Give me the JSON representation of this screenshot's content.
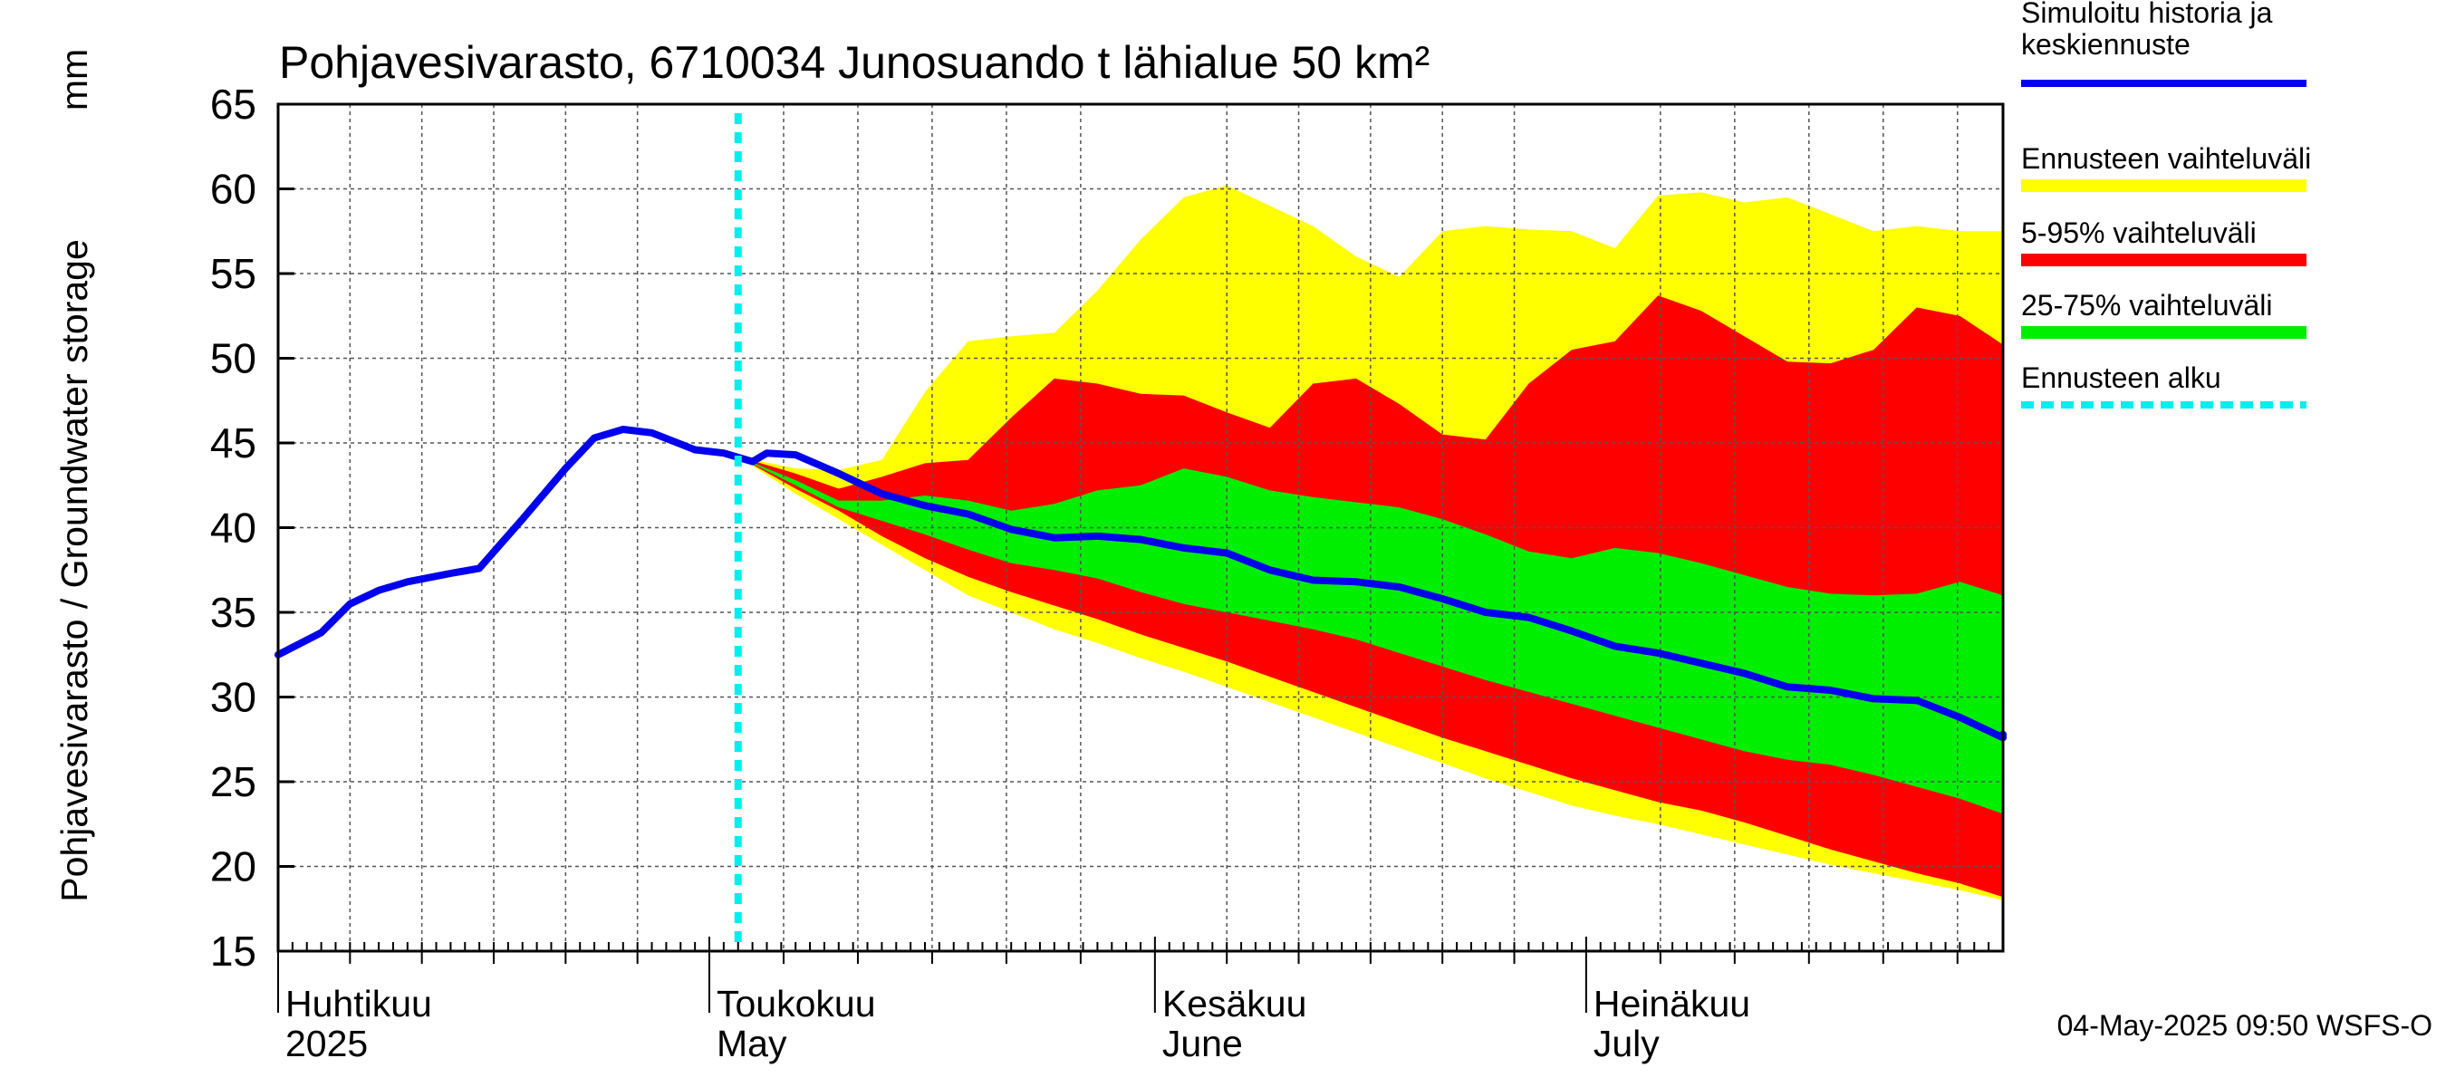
{
  "chart_data": {
    "type": "area",
    "title": "Pohjavesivarasto, 6710034 Junosuando t lähialue 50 km²",
    "ylabel": "Pohjavesivarasto / Groundwater storage",
    "yunit": "mm",
    "ylim": [
      15,
      65
    ],
    "yticks": [
      15,
      20,
      25,
      30,
      35,
      40,
      45,
      50,
      55,
      60,
      65
    ],
    "xlim": [
      "2025-04-01",
      "2025-07-30"
    ],
    "grid": true,
    "legend_position": "right",
    "month_labels": [
      {
        "fi": "Huhtikuu",
        "en": "2025",
        "date": "2025-04-01"
      },
      {
        "fi": "Toukokuu",
        "en": "May",
        "date": "2025-05-01"
      },
      {
        "fi": "Kesäkuu",
        "en": "June",
        "date": "2025-06-01"
      },
      {
        "fi": "Heinäkuu",
        "en": "July",
        "date": "2025-07-01"
      }
    ],
    "forecast_start": "2025-05-03",
    "footer": "04-May-2025 09:50 WSFS-O",
    "series": [
      {
        "name": "Simuloitu historia ja keskiennuste",
        "color": "#0000ee",
        "points": [
          [
            "2025-04-01",
            32.5
          ],
          [
            "2025-04-04",
            33.8
          ],
          [
            "2025-04-06",
            35.5
          ],
          [
            "2025-04-08",
            36.3
          ],
          [
            "2025-04-10",
            36.8
          ],
          [
            "2025-04-13",
            37.3
          ],
          [
            "2025-04-15",
            37.6
          ],
          [
            "2025-04-18",
            40.5
          ],
          [
            "2025-04-21",
            43.5
          ],
          [
            "2025-04-23",
            45.3
          ],
          [
            "2025-04-25",
            45.8
          ],
          [
            "2025-04-27",
            45.6
          ],
          [
            "2025-04-30",
            44.6
          ],
          [
            "2025-05-02",
            44.4
          ],
          [
            "2025-05-04",
            43.9
          ],
          [
            "2025-05-05",
            44.4
          ],
          [
            "2025-05-07",
            44.3
          ],
          [
            "2025-05-10",
            43.2
          ],
          [
            "2025-05-13",
            42.0
          ],
          [
            "2025-05-16",
            41.3
          ],
          [
            "2025-05-19",
            40.8
          ],
          [
            "2025-05-22",
            39.9
          ],
          [
            "2025-05-25",
            39.4
          ],
          [
            "2025-05-28",
            39.5
          ],
          [
            "2025-05-31",
            39.3
          ],
          [
            "2025-06-03",
            38.8
          ],
          [
            "2025-06-06",
            38.5
          ],
          [
            "2025-06-09",
            37.5
          ],
          [
            "2025-06-12",
            36.9
          ],
          [
            "2025-06-15",
            36.8
          ],
          [
            "2025-06-18",
            36.5
          ],
          [
            "2025-06-21",
            35.8
          ],
          [
            "2025-06-24",
            35.0
          ],
          [
            "2025-06-27",
            34.7
          ],
          [
            "2025-06-30",
            33.9
          ],
          [
            "2025-07-03",
            33.0
          ],
          [
            "2025-07-06",
            32.6
          ],
          [
            "2025-07-09",
            32.0
          ],
          [
            "2025-07-12",
            31.4
          ],
          [
            "2025-07-15",
            30.6
          ],
          [
            "2025-07-18",
            30.4
          ],
          [
            "2025-07-21",
            29.9
          ],
          [
            "2025-07-24",
            29.8
          ],
          [
            "2025-07-27",
            28.8
          ],
          [
            "2025-07-30",
            27.6
          ],
          [
            "2025-08-01",
            27.8
          ]
        ]
      },
      {
        "name": "Ennusteen vaihteluväli",
        "color": "#ffff00",
        "upper": [
          [
            "2025-05-03",
            44.2
          ],
          [
            "2025-05-07",
            43.5
          ],
          [
            "2025-05-10",
            43.4
          ],
          [
            "2025-05-13",
            44.0
          ],
          [
            "2025-05-16",
            48.0
          ],
          [
            "2025-05-19",
            51.0
          ],
          [
            "2025-05-22",
            51.3
          ],
          [
            "2025-05-25",
            51.5
          ],
          [
            "2025-05-28",
            54.0
          ],
          [
            "2025-05-31",
            57.0
          ],
          [
            "2025-06-03",
            59.5
          ],
          [
            "2025-06-06",
            60.2
          ],
          [
            "2025-06-09",
            59.0
          ],
          [
            "2025-06-12",
            57.8
          ],
          [
            "2025-06-15",
            56.0
          ],
          [
            "2025-06-18",
            54.8
          ],
          [
            "2025-06-21",
            57.5
          ],
          [
            "2025-06-24",
            57.8
          ],
          [
            "2025-06-27",
            57.6
          ],
          [
            "2025-06-30",
            57.5
          ],
          [
            "2025-07-03",
            56.5
          ],
          [
            "2025-07-06",
            59.6
          ],
          [
            "2025-07-09",
            59.8
          ],
          [
            "2025-07-12",
            59.2
          ],
          [
            "2025-07-15",
            59.5
          ],
          [
            "2025-07-18",
            58.5
          ],
          [
            "2025-07-21",
            57.5
          ],
          [
            "2025-07-24",
            57.8
          ],
          [
            "2025-07-27",
            57.5
          ],
          [
            "2025-07-30",
            57.5
          ],
          [
            "2025-08-01",
            57.3
          ]
        ],
        "lower": [
          [
            "2025-05-03",
            44.2
          ],
          [
            "2025-05-07",
            42.0
          ],
          [
            "2025-05-10",
            40.5
          ],
          [
            "2025-05-13",
            39.0
          ],
          [
            "2025-05-16",
            37.5
          ],
          [
            "2025-05-19",
            36.0
          ],
          [
            "2025-05-22",
            35.0
          ],
          [
            "2025-05-25",
            34.0
          ],
          [
            "2025-05-28",
            33.2
          ],
          [
            "2025-05-31",
            32.3
          ],
          [
            "2025-06-03",
            31.5
          ],
          [
            "2025-06-06",
            30.6
          ],
          [
            "2025-06-09",
            29.7
          ],
          [
            "2025-06-12",
            28.8
          ],
          [
            "2025-06-15",
            27.9
          ],
          [
            "2025-06-18",
            27.0
          ],
          [
            "2025-06-21",
            26.1
          ],
          [
            "2025-06-24",
            25.2
          ],
          [
            "2025-06-27",
            24.4
          ],
          [
            "2025-06-30",
            23.6
          ],
          [
            "2025-07-03",
            23.0
          ],
          [
            "2025-07-06",
            22.5
          ],
          [
            "2025-07-09",
            21.9
          ],
          [
            "2025-07-12",
            21.3
          ],
          [
            "2025-07-15",
            20.7
          ],
          [
            "2025-07-18",
            20.1
          ],
          [
            "2025-07-21",
            19.6
          ],
          [
            "2025-07-24",
            19.1
          ],
          [
            "2025-07-27",
            18.6
          ],
          [
            "2025-07-30",
            18.0
          ],
          [
            "2025-08-01",
            17.7
          ]
        ]
      },
      {
        "name": "5-95% vaihteluväli",
        "color": "#ff0000",
        "upper": [
          [
            "2025-05-03",
            44.2
          ],
          [
            "2025-05-07",
            43.2
          ],
          [
            "2025-05-10",
            42.3
          ],
          [
            "2025-05-13",
            43.0
          ],
          [
            "2025-05-16",
            43.8
          ],
          [
            "2025-05-19",
            44.0
          ],
          [
            "2025-05-22",
            46.5
          ],
          [
            "2025-05-25",
            48.8
          ],
          [
            "2025-05-28",
            48.5
          ],
          [
            "2025-05-31",
            47.9
          ],
          [
            "2025-06-03",
            47.8
          ],
          [
            "2025-06-06",
            46.8
          ],
          [
            "2025-06-09",
            45.9
          ],
          [
            "2025-06-12",
            48.5
          ],
          [
            "2025-06-15",
            48.8
          ],
          [
            "2025-06-18",
            47.3
          ],
          [
            "2025-06-21",
            45.5
          ],
          [
            "2025-06-24",
            45.2
          ],
          [
            "2025-06-27",
            48.5
          ],
          [
            "2025-06-30",
            50.5
          ],
          [
            "2025-07-03",
            51.0
          ],
          [
            "2025-07-06",
            53.7
          ],
          [
            "2025-07-09",
            52.8
          ],
          [
            "2025-07-12",
            51.3
          ],
          [
            "2025-07-15",
            49.8
          ],
          [
            "2025-07-18",
            49.7
          ],
          [
            "2025-07-21",
            50.5
          ],
          [
            "2025-07-24",
            53.0
          ],
          [
            "2025-07-27",
            52.5
          ],
          [
            "2025-07-30",
            50.8
          ],
          [
            "2025-08-01",
            49.5
          ]
        ],
        "lower": [
          [
            "2025-05-03",
            44.2
          ],
          [
            "2025-05-07",
            42.3
          ],
          [
            "2025-05-10",
            41.0
          ],
          [
            "2025-05-13",
            39.5
          ],
          [
            "2025-05-16",
            38.2
          ],
          [
            "2025-05-19",
            37.1
          ],
          [
            "2025-05-22",
            36.2
          ],
          [
            "2025-05-25",
            35.4
          ],
          [
            "2025-05-28",
            34.6
          ],
          [
            "2025-05-31",
            33.7
          ],
          [
            "2025-06-03",
            32.9
          ],
          [
            "2025-06-06",
            32.1
          ],
          [
            "2025-06-09",
            31.2
          ],
          [
            "2025-06-12",
            30.3
          ],
          [
            "2025-06-15",
            29.4
          ],
          [
            "2025-06-18",
            28.5
          ],
          [
            "2025-06-21",
            27.6
          ],
          [
            "2025-06-24",
            26.8
          ],
          [
            "2025-06-27",
            26.0
          ],
          [
            "2025-06-30",
            25.2
          ],
          [
            "2025-07-03",
            24.5
          ],
          [
            "2025-07-06",
            23.8
          ],
          [
            "2025-07-09",
            23.3
          ],
          [
            "2025-07-12",
            22.6
          ],
          [
            "2025-07-15",
            21.8
          ],
          [
            "2025-07-18",
            21.0
          ],
          [
            "2025-07-21",
            20.3
          ],
          [
            "2025-07-24",
            19.6
          ],
          [
            "2025-07-27",
            19.0
          ],
          [
            "2025-07-30",
            18.2
          ],
          [
            "2025-08-01",
            17.7
          ]
        ]
      },
      {
        "name": "25-75% vaihteluväli",
        "color": "#00ee00",
        "upper": [
          [
            "2025-05-03",
            44.2
          ],
          [
            "2025-05-07",
            42.8
          ],
          [
            "2025-05-10",
            41.6
          ],
          [
            "2025-05-13",
            41.6
          ],
          [
            "2025-05-16",
            41.9
          ],
          [
            "2025-05-19",
            41.6
          ],
          [
            "2025-05-22",
            41.0
          ],
          [
            "2025-05-25",
            41.4
          ],
          [
            "2025-05-28",
            42.2
          ],
          [
            "2025-05-31",
            42.5
          ],
          [
            "2025-06-03",
            43.5
          ],
          [
            "2025-06-06",
            43.0
          ],
          [
            "2025-06-09",
            42.2
          ],
          [
            "2025-06-12",
            41.8
          ],
          [
            "2025-06-15",
            41.5
          ],
          [
            "2025-06-18",
            41.2
          ],
          [
            "2025-06-21",
            40.5
          ],
          [
            "2025-06-24",
            39.6
          ],
          [
            "2025-06-27",
            38.6
          ],
          [
            "2025-06-30",
            38.2
          ],
          [
            "2025-07-03",
            38.8
          ],
          [
            "2025-07-06",
            38.5
          ],
          [
            "2025-07-09",
            37.9
          ],
          [
            "2025-07-12",
            37.2
          ],
          [
            "2025-07-15",
            36.5
          ],
          [
            "2025-07-18",
            36.1
          ],
          [
            "2025-07-21",
            36.0
          ],
          [
            "2025-07-24",
            36.1
          ],
          [
            "2025-07-27",
            36.8
          ],
          [
            "2025-07-30",
            36.0
          ],
          [
            "2025-08-01",
            34.9
          ]
        ],
        "lower": [
          [
            "2025-05-03",
            44.2
          ],
          [
            "2025-05-07",
            42.5
          ],
          [
            "2025-05-10",
            41.2
          ],
          [
            "2025-05-13",
            40.4
          ],
          [
            "2025-05-16",
            39.6
          ],
          [
            "2025-05-19",
            38.7
          ],
          [
            "2025-05-22",
            37.9
          ],
          [
            "2025-05-25",
            37.5
          ],
          [
            "2025-05-28",
            37.0
          ],
          [
            "2025-05-31",
            36.2
          ],
          [
            "2025-06-03",
            35.5
          ],
          [
            "2025-06-06",
            35.0
          ],
          [
            "2025-06-09",
            34.5
          ],
          [
            "2025-06-12",
            34.0
          ],
          [
            "2025-06-15",
            33.4
          ],
          [
            "2025-06-18",
            32.6
          ],
          [
            "2025-06-21",
            31.8
          ],
          [
            "2025-06-24",
            31.0
          ],
          [
            "2025-06-27",
            30.3
          ],
          [
            "2025-06-30",
            29.6
          ],
          [
            "2025-07-03",
            28.9
          ],
          [
            "2025-07-06",
            28.2
          ],
          [
            "2025-07-09",
            27.5
          ],
          [
            "2025-07-12",
            26.8
          ],
          [
            "2025-07-15",
            26.3
          ],
          [
            "2025-07-18",
            26.0
          ],
          [
            "2025-07-21",
            25.4
          ],
          [
            "2025-07-24",
            24.7
          ],
          [
            "2025-07-27",
            24.0
          ],
          [
            "2025-07-30",
            23.1
          ],
          [
            "2025-08-01",
            22.2
          ]
        ]
      },
      {
        "name": "Ennusteen alku",
        "color": "#00eeee",
        "style": "dashed"
      }
    ]
  }
}
